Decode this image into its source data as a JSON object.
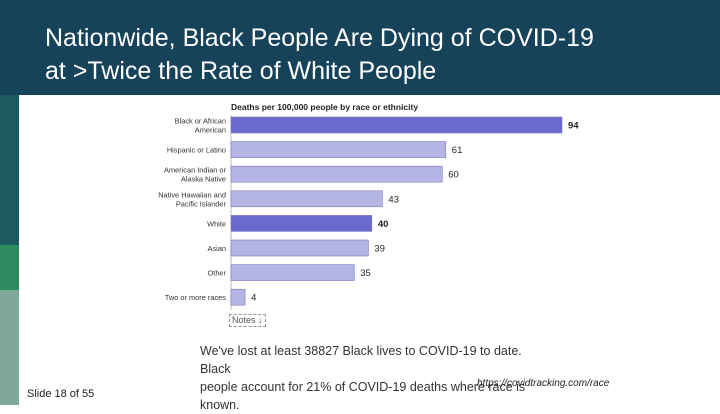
{
  "slide": {
    "title_line1": "Nationwide, Black People Are Dying of COVID-19",
    "title_line2": "at >Twice the Rate of White People",
    "slide_number": "Slide 18 of 55",
    "notes_label": "Notes ↓",
    "footnote_line1": "We've lost at least 38827 Black lives to COVID-19 to date. Black",
    "footnote_line2": "people account for 21% of COVID-19 deaths where race is known.",
    "source": "https://covidtracking.com/race"
  },
  "colors": {
    "header": "#17435a",
    "stripe_top": "#1b5a5e",
    "stripe_mid": "#2e8a5f",
    "stripe_bottom": "#7fa79a",
    "bar_default": "#b4b5e3",
    "bar_highlight": "#6a6acd",
    "bar_stroke": "#7a7ac0"
  },
  "chart_data": {
    "type": "bar",
    "orientation": "horizontal",
    "title": "Deaths per 100,000 people by race or ethnicity",
    "categories": [
      [
        "Black or African",
        "American"
      ],
      [
        "Hispanic or Latino"
      ],
      [
        "American Indian or",
        "Alaska Native"
      ],
      [
        "Native Hawaiian and",
        "Pacific Islander"
      ],
      [
        "White"
      ],
      [
        "Asian"
      ],
      [
        "Other"
      ],
      [
        "Two or more races"
      ]
    ],
    "values": [
      94,
      61,
      60,
      43,
      40,
      39,
      35,
      4
    ],
    "highlighted": [
      true,
      false,
      false,
      false,
      true,
      false,
      false,
      false
    ],
    "xlim": [
      0,
      94
    ]
  }
}
